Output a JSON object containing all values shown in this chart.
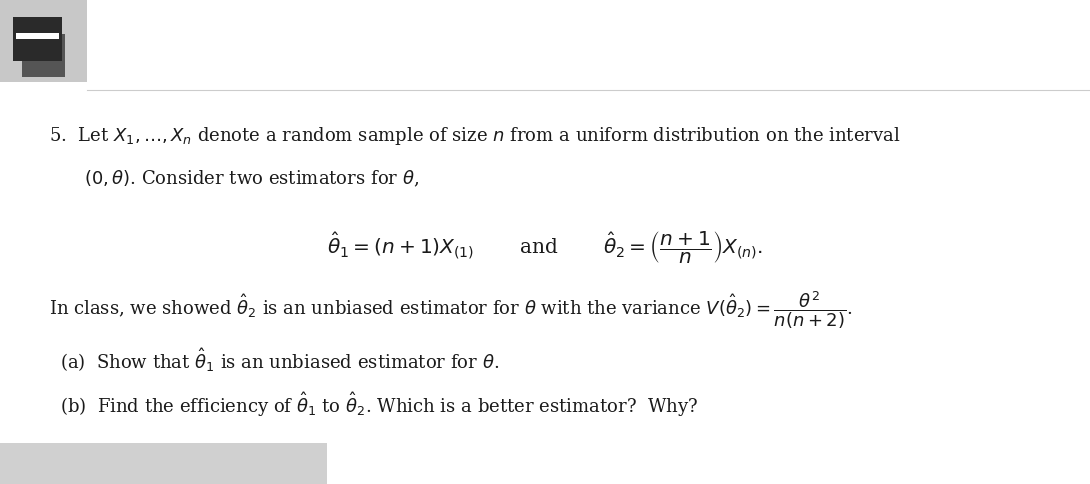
{
  "bg_color": "#e8e8e8",
  "content_bg": "#ffffff",
  "text_color": "#1a1a1a",
  "figsize": [
    10.9,
    4.84
  ],
  "dpi": 100,
  "gray_bar_color": "#d0d0d0",
  "top_gray_bg": "#c8c8c8",
  "icon_color": "#1a1a1a",
  "line1": "5.  Let $X_1,\\ldots,X_n$ denote a random sample of size $n$ from a uniform distribution on the interval",
  "line2": "$(0, \\theta)$. Consider two estimators for $\\theta$,",
  "line3": "In class, we showed $\\hat{\\theta}_2$ is an unbiased estimator for $\\theta$ with the variance $V(\\hat{\\theta}_2) = \\dfrac{\\theta^2}{n(n+2)}$.",
  "line4a": "(a)  Show that $\\hat{\\theta}_1$ is an unbiased estimator for $\\theta$.",
  "line4b": "(b)  Find the efficiency of $\\hat{\\theta}_1$ to $\\hat{\\theta}_2$. Which is a better estimator?  Why?"
}
